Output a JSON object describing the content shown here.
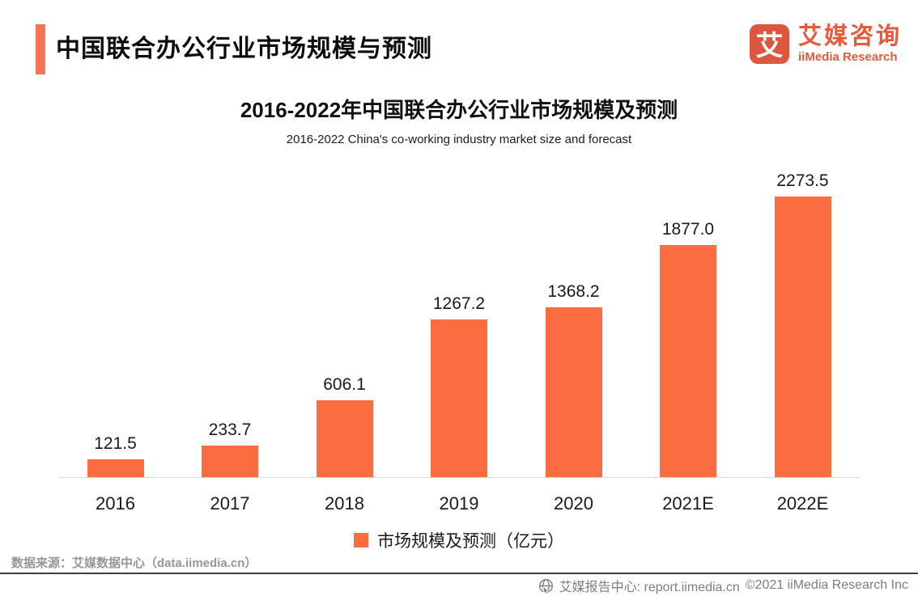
{
  "header": {
    "title": "中国联合办公行业市场规模与预测"
  },
  "logo": {
    "mark": "艾",
    "cn": "艾媒咨询",
    "en": "iiMedia Research"
  },
  "chart": {
    "title": "2016-2022年中国联合办公行业市场规模及预测",
    "subtitle": "2016-2022 China's co-working industry market size and forecast",
    "legend_label": "市场规模及预测（亿元）"
  },
  "chart_data": {
    "type": "bar",
    "categories": [
      "2016",
      "2017",
      "2018",
      "2019",
      "2020",
      "2021E",
      "2022E"
    ],
    "values": [
      121.5,
      233.7,
      606.1,
      1267.2,
      1368.2,
      1877.0,
      2273.5
    ],
    "value_labels": [
      "121.5",
      "233.7",
      "606.1",
      "1267.2",
      "1368.2",
      "1877.0",
      "2273.5"
    ],
    "title": "2016-2022年中国联合办公行业市场规模及预测",
    "subtitle": "2016-2022 China's co-working industry market size and forecast",
    "xlabel": "",
    "ylabel": "",
    "ylim": [
      0,
      2400
    ],
    "legend": [
      "市场规模及预测（亿元）"
    ],
    "legend_position": "bottom",
    "grid": false,
    "bar_color": "#FC6C41",
    "baseline_color": "#d9d9d9"
  },
  "footer": {
    "source": "数据来源：艾媒数据中心（data.iimedia.cn）",
    "report_center": "艾媒报告中心:  report.iimedia.cn",
    "copyright": "©2021   iiMedia Research  Inc"
  },
  "colors": {
    "accent": "#FC6C41",
    "logo_orange": "#DD5740",
    "rule_dark": "#3d3d3d",
    "gray_text": "#7d7d7d"
  }
}
